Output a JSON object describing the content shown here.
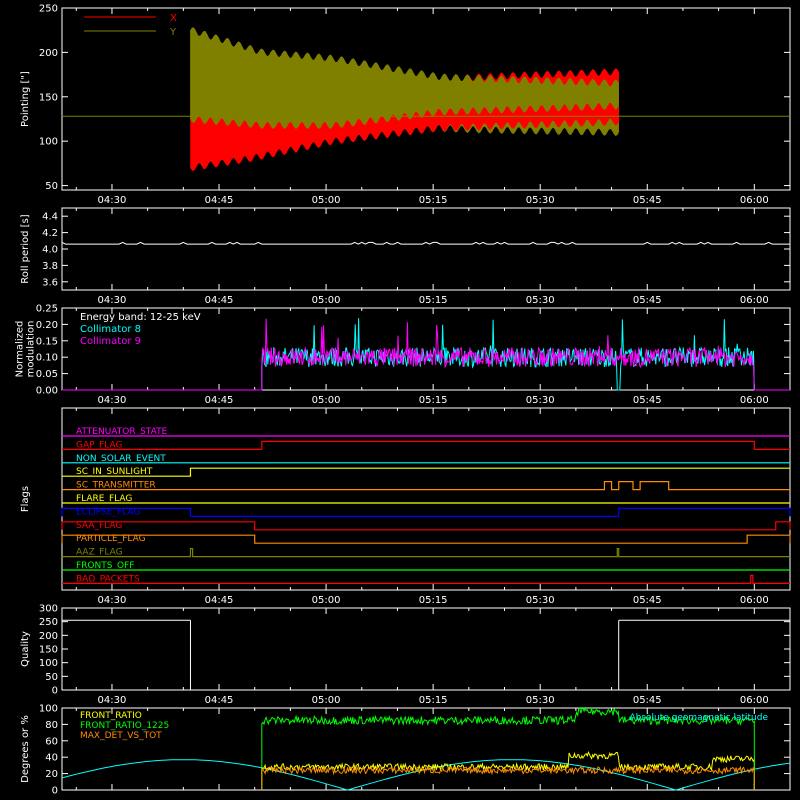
{
  "chart_data": [
    {
      "id": "pointing",
      "type": "line",
      "ylabel": "Pointing [\"]",
      "ylim": [
        45,
        250
      ],
      "yticks": [
        50,
        100,
        150,
        200,
        250
      ],
      "x_tick_labels": [
        "04:30",
        "04:45",
        "05:00",
        "05:15",
        "05:30",
        "05:45",
        "06:00"
      ],
      "legend": [
        {
          "name": "X",
          "color": "#ff0000"
        },
        {
          "name": "Y",
          "color": "#808000"
        }
      ],
      "reference_line": {
        "y": 128,
        "color": "#808000"
      },
      "series": [
        {
          "name": "X",
          "color": "#ff0000",
          "x_start": "04:41",
          "x_end": "05:41",
          "envelope_upper": [
            [
              0,
              135
            ],
            [
              12,
              150
            ],
            [
              25,
              162
            ],
            [
              40,
              172
            ],
            [
              60,
              178
            ]
          ],
          "envelope_lower": [
            [
              0,
              70
            ],
            [
              8,
              80
            ],
            [
              20,
              100
            ],
            [
              35,
              115
            ],
            [
              60,
              122
            ]
          ]
        },
        {
          "name": "Y",
          "color": "#808000",
          "x_start": "04:41",
          "x_end": "05:41",
          "envelope_upper": [
            [
              0,
              225
            ],
            [
              10,
              200
            ],
            [
              20,
              193
            ],
            [
              35,
              172
            ],
            [
              60,
              165
            ]
          ],
          "envelope_lower": [
            [
              0,
              125
            ],
            [
              10,
              118
            ],
            [
              25,
              118
            ],
            [
              40,
              113
            ],
            [
              60,
              110
            ]
          ]
        }
      ]
    },
    {
      "id": "roll-period",
      "type": "line",
      "ylabel": "Roll period [s]",
      "ylim": [
        3.5,
        4.5
      ],
      "yticks": [
        3.6,
        3.8,
        4.0,
        4.2,
        4.4
      ],
      "ytick_labels": [
        "3.6",
        "3.8",
        "4.0",
        "4.2",
        "4.4"
      ],
      "x_tick_labels": [
        "04:30",
        "04:45",
        "05:00",
        "05:15",
        "05:30",
        "05:45",
        "06:00"
      ],
      "series": [
        {
          "name": "",
          "color": "#ffffff",
          "value": 4.06
        }
      ]
    },
    {
      "id": "modulation",
      "type": "line",
      "ylabel_lines": [
        "Normalized",
        "modulation"
      ],
      "ylim": [
        0,
        0.25
      ],
      "yticks": [
        0.0,
        0.05,
        0.1,
        0.15,
        0.2,
        0.25
      ],
      "ytick_labels": [
        "0.00",
        "0.05",
        "0.10",
        "0.15",
        "0.20",
        "0.25"
      ],
      "x_tick_labels": [
        "04:30",
        "04:45",
        "05:00",
        "05:15",
        "05:30",
        "05:45",
        "06:00"
      ],
      "annotation": "Energy band: 12-25 keV",
      "legend": [
        {
          "name": "Collimator 8",
          "color": "#00ffff"
        },
        {
          "name": "Collimator 9",
          "color": "#ff00ff"
        }
      ],
      "series": [
        {
          "name": "Collimator 8",
          "color": "#00ffff",
          "x_start": "04:51",
          "x_end": "06:00",
          "mean": 0.1,
          "spread": 0.03
        },
        {
          "name": "Collimator 9",
          "color": "#ff00ff",
          "x_start": "04:51",
          "x_end": "06:00",
          "mean": 0.1,
          "spread": 0.03
        }
      ]
    },
    {
      "id": "flags",
      "type": "line",
      "ylabel": "Flags",
      "x_tick_labels": [
        "04:30",
        "04:45",
        "05:00",
        "05:15",
        "05:30",
        "05:45",
        "06:00"
      ],
      "series": [
        {
          "name": "ATTENUATOR_STATE",
          "color": "#ff00ff",
          "steps": []
        },
        {
          "name": "GAP_FLAG",
          "color": "#ff0000",
          "steps": [
            [
              "04:51",
              "06:00"
            ]
          ]
        },
        {
          "name": "NON_SOLAR_EVENT",
          "color": "#00ffff",
          "steps": []
        },
        {
          "name": "SC_IN_SUNLIGHT",
          "color": "#ffff00",
          "steps": [
            [
              "04:23",
              "04:41"
            ]
          ],
          "inverted": true
        },
        {
          "name": "SC_TRANSMITTER",
          "color": "#ff8c00",
          "steps": [
            [
              "05:39",
              "05:40"
            ],
            [
              "05:41",
              "05:43"
            ],
            [
              "05:44",
              "05:48"
            ]
          ]
        },
        {
          "name": "FLARE_FLAG",
          "color": "#ffff00",
          "steps": []
        },
        {
          "name": "ECLIPSE_FLAG",
          "color": "#0000ff",
          "steps": [
            [
              "04:23",
              "04:41"
            ],
            [
              "05:41",
              "06:05"
            ]
          ]
        },
        {
          "name": "SAA_FLAG",
          "color": "#ff0000",
          "steps": [
            [
              "04:23",
              "04:50"
            ],
            [
              "06:03",
              "06:05"
            ]
          ]
        },
        {
          "name": "PARTICLE_FLAG",
          "color": "#ff8c00",
          "steps": [
            [
              "04:23",
              "04:50"
            ],
            [
              "05:59",
              "06:05"
            ]
          ]
        },
        {
          "name": "AAZ_FLAG",
          "color": "#808000",
          "steps": [
            [
              "04:41",
              "04:41.3"
            ],
            [
              "05:40.8",
              "05:41"
            ]
          ]
        },
        {
          "name": "FRONTS_OFF",
          "color": "#00ff00",
          "steps": []
        },
        {
          "name": "BAD_PACKETS",
          "color": "#ff0000",
          "steps": [
            [
              "05:59.5",
              "05:59.8"
            ]
          ]
        }
      ]
    },
    {
      "id": "quality",
      "type": "line",
      "ylabel": "Quality",
      "ylim": [
        0,
        300
      ],
      "yticks": [
        0,
        50,
        100,
        150,
        200,
        250,
        300
      ],
      "x_tick_labels": [
        "04:30",
        "04:45",
        "05:00",
        "05:15",
        "05:30",
        "05:45",
        "06:00"
      ],
      "series": [
        {
          "name": "",
          "color": "#ffffff",
          "value": 255,
          "x_segments": [
            [
              "04:23",
              "04:41"
            ],
            [
              "05:41",
              "06:05"
            ]
          ]
        }
      ]
    },
    {
      "id": "ratios",
      "type": "line",
      "ylabel": "Degrees or %",
      "ylim": [
        0,
        100
      ],
      "yticks": [
        0,
        20,
        40,
        60,
        80,
        100
      ],
      "legend": [
        {
          "name": "FRONT_RATIO",
          "color": "#ffff00"
        },
        {
          "name": "FRONT_RATIO_1225",
          "color": "#00ff00"
        },
        {
          "name": "MAX_DET_VS_TOT",
          "color": "#ff8c00"
        }
      ],
      "annotation": "Absolute geomagnetic latitude",
      "annotation_color": "#00ffff",
      "series": [
        {
          "name": "FRONT_RATIO",
          "color": "#ffff00",
          "x_start": "04:51",
          "x_end": "06:00",
          "level": 28
        },
        {
          "name": "FRONT_RATIO_1225",
          "color": "#00ff00",
          "x_start": "04:51",
          "x_end": "06:00",
          "level": 85
        },
        {
          "name": "MAX_DET_VS_TOT",
          "color": "#ff8c00",
          "x_start": "04:51",
          "x_end": "06:00",
          "level": 24
        },
        {
          "name": "Absolute geomagnetic latitude",
          "color": "#00ffff",
          "period_min": 46,
          "amplitude": 37
        }
      ]
    }
  ]
}
